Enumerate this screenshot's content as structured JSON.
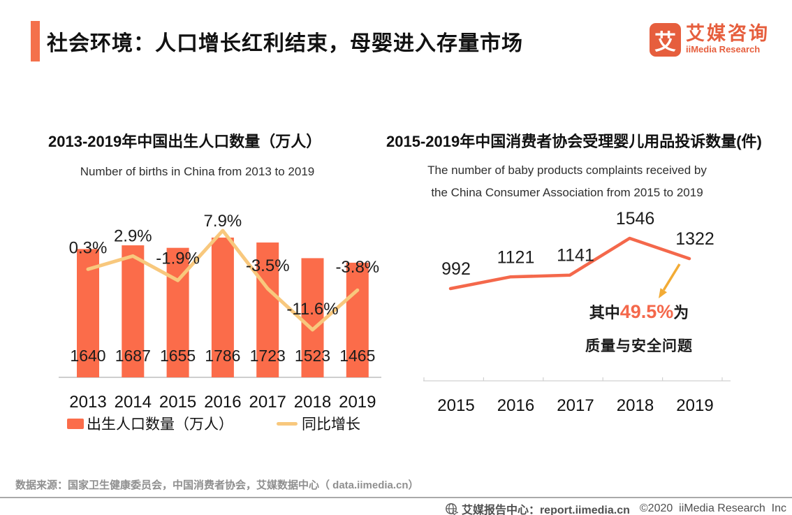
{
  "colors": {
    "accent": "#f4714c",
    "bar": "#fb6c4a",
    "growth_line": "#f8c87d",
    "complaint_line": "#f4684b",
    "arrow": "#f2ab35",
    "logo_orange": "#e65e3d",
    "axis_gray": "#bdbdbd",
    "highlight": "#f4684b"
  },
  "header": {
    "title": "社会环境：人口增长红利结束，母婴进入存量市场",
    "logo_mark": "艾",
    "logo_cn": "艾媒咨询",
    "logo_en": "iiMedia Research"
  },
  "charts": {
    "births": {
      "title": "2013-2019年中国出生人口数量（万人）",
      "subtitle": "Number of births in China from 2013 to 2019",
      "legend_bar": "出生人口数量（万人）",
      "legend_line": "同比增长"
    },
    "complaints": {
      "title": "2015-2019年中国消费者协会受理婴儿用品投诉数量(件)",
      "subtitle_line1": "The number of baby products complaints received by",
      "subtitle_line2": "the China Consumer Association from 2015 to 2019",
      "annotation_prefix": "其中",
      "annotation_value": "49.5%",
      "annotation_suffix": "为",
      "annotation_line2": "质量与安全问题"
    }
  },
  "chart_data": [
    {
      "type": "bar",
      "title": "2013-2019年中国出生人口数量（万人）",
      "subtitle": "Number of births in China from 2013 to 2019",
      "categories": [
        "2013",
        "2014",
        "2015",
        "2016",
        "2017",
        "2018",
        "2019"
      ],
      "series": [
        {
          "name": "出生人口数量（万人）",
          "type": "bar",
          "values": [
            1640,
            1687,
            1655,
            1786,
            1723,
            1523,
            1465
          ]
        },
        {
          "name": "同比增长",
          "type": "line",
          "values_pct": [
            0.3,
            2.9,
            -1.9,
            7.9,
            -3.5,
            -11.6,
            -3.8
          ],
          "labels": [
            "0.3%",
            "2.9%",
            "-1.9%",
            "7.9%",
            "-3.5%",
            "-11.6%",
            "-3.8%"
          ]
        }
      ],
      "legend_position": "bottom",
      "grid": false,
      "value_labels_shown": true
    },
    {
      "type": "line",
      "title": "2015-2019年中国消费者协会受理婴儿用品投诉数量(件)",
      "subtitle": "The number of baby products complaints received by the China Consumer Association from 2015 to 2019",
      "categories": [
        "2015",
        "2016",
        "2017",
        "2018",
        "2019"
      ],
      "values": [
        992,
        1121,
        1141,
        1546,
        1322
      ],
      "annotation": "其中49.5%为质量与安全问题",
      "grid": false,
      "value_labels_shown": true
    }
  ],
  "footer": {
    "source": "数据来源：国家卫生健康委员会，中国消费者协会，艾媒数据中心（ data.iimedia.cn）",
    "report_center": "艾媒报告中心：report.iimedia.cn",
    "copyright": "©2020  iiMedia Research  Inc"
  }
}
